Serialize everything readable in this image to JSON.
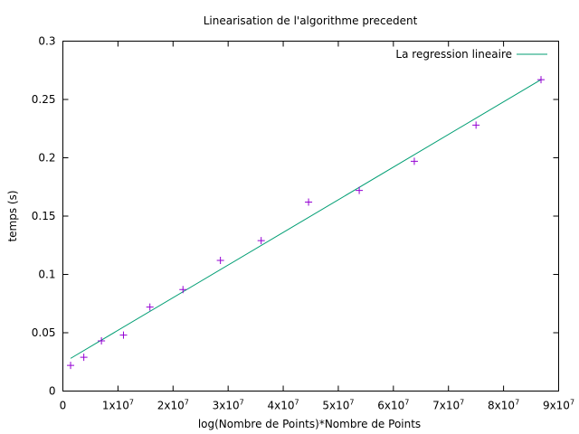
{
  "chart_data": {
    "type": "scatter",
    "title": "Linearisation de l'algorithme precedent",
    "xlabel": "log(Nombre de Points)*Nombre de Points",
    "ylabel": "temps (s)",
    "xlim": [
      0,
      90000000
    ],
    "ylim": [
      0,
      0.3
    ],
    "grid": false,
    "legend_position": "top-right",
    "x_ticks": [
      {
        "value": 0,
        "base": "0",
        "exp": ""
      },
      {
        "value": 10000000,
        "base": "1x10",
        "exp": "7"
      },
      {
        "value": 20000000,
        "base": "2x10",
        "exp": "7"
      },
      {
        "value": 30000000,
        "base": "3x10",
        "exp": "7"
      },
      {
        "value": 40000000,
        "base": "4x10",
        "exp": "7"
      },
      {
        "value": 50000000,
        "base": "5x10",
        "exp": "7"
      },
      {
        "value": 60000000,
        "base": "6x10",
        "exp": "7"
      },
      {
        "value": 70000000,
        "base": "7x10",
        "exp": "7"
      },
      {
        "value": 80000000,
        "base": "8x10",
        "exp": "7"
      },
      {
        "value": 90000000,
        "base": "9x10",
        "exp": "7"
      }
    ],
    "y_ticks": [
      {
        "value": 0,
        "label": "0"
      },
      {
        "value": 0.05,
        "label": "0.05"
      },
      {
        "value": 0.1,
        "label": "0.1"
      },
      {
        "value": 0.15,
        "label": "0.15"
      },
      {
        "value": 0.2,
        "label": "0.2"
      },
      {
        "value": 0.25,
        "label": "0.25"
      },
      {
        "value": 0.3,
        "label": "0.3"
      }
    ],
    "series": [
      {
        "kind": "points",
        "color": "#9400d3",
        "x": [
          1400000,
          3800000,
          7000000,
          11000000,
          15800000,
          21800000,
          28600000,
          36000000,
          44600000,
          53800000,
          63800000,
          75000000,
          86800000
        ],
        "y": [
          0.022,
          0.029,
          0.043,
          0.048,
          0.072,
          0.087,
          0.112,
          0.129,
          0.162,
          0.172,
          0.197,
          0.228,
          0.267
        ]
      },
      {
        "kind": "line",
        "name": "La regression lineaire",
        "color": "#009e73",
        "x": [
          1400000,
          86800000
        ],
        "y": [
          0.028,
          0.267
        ]
      }
    ]
  }
}
